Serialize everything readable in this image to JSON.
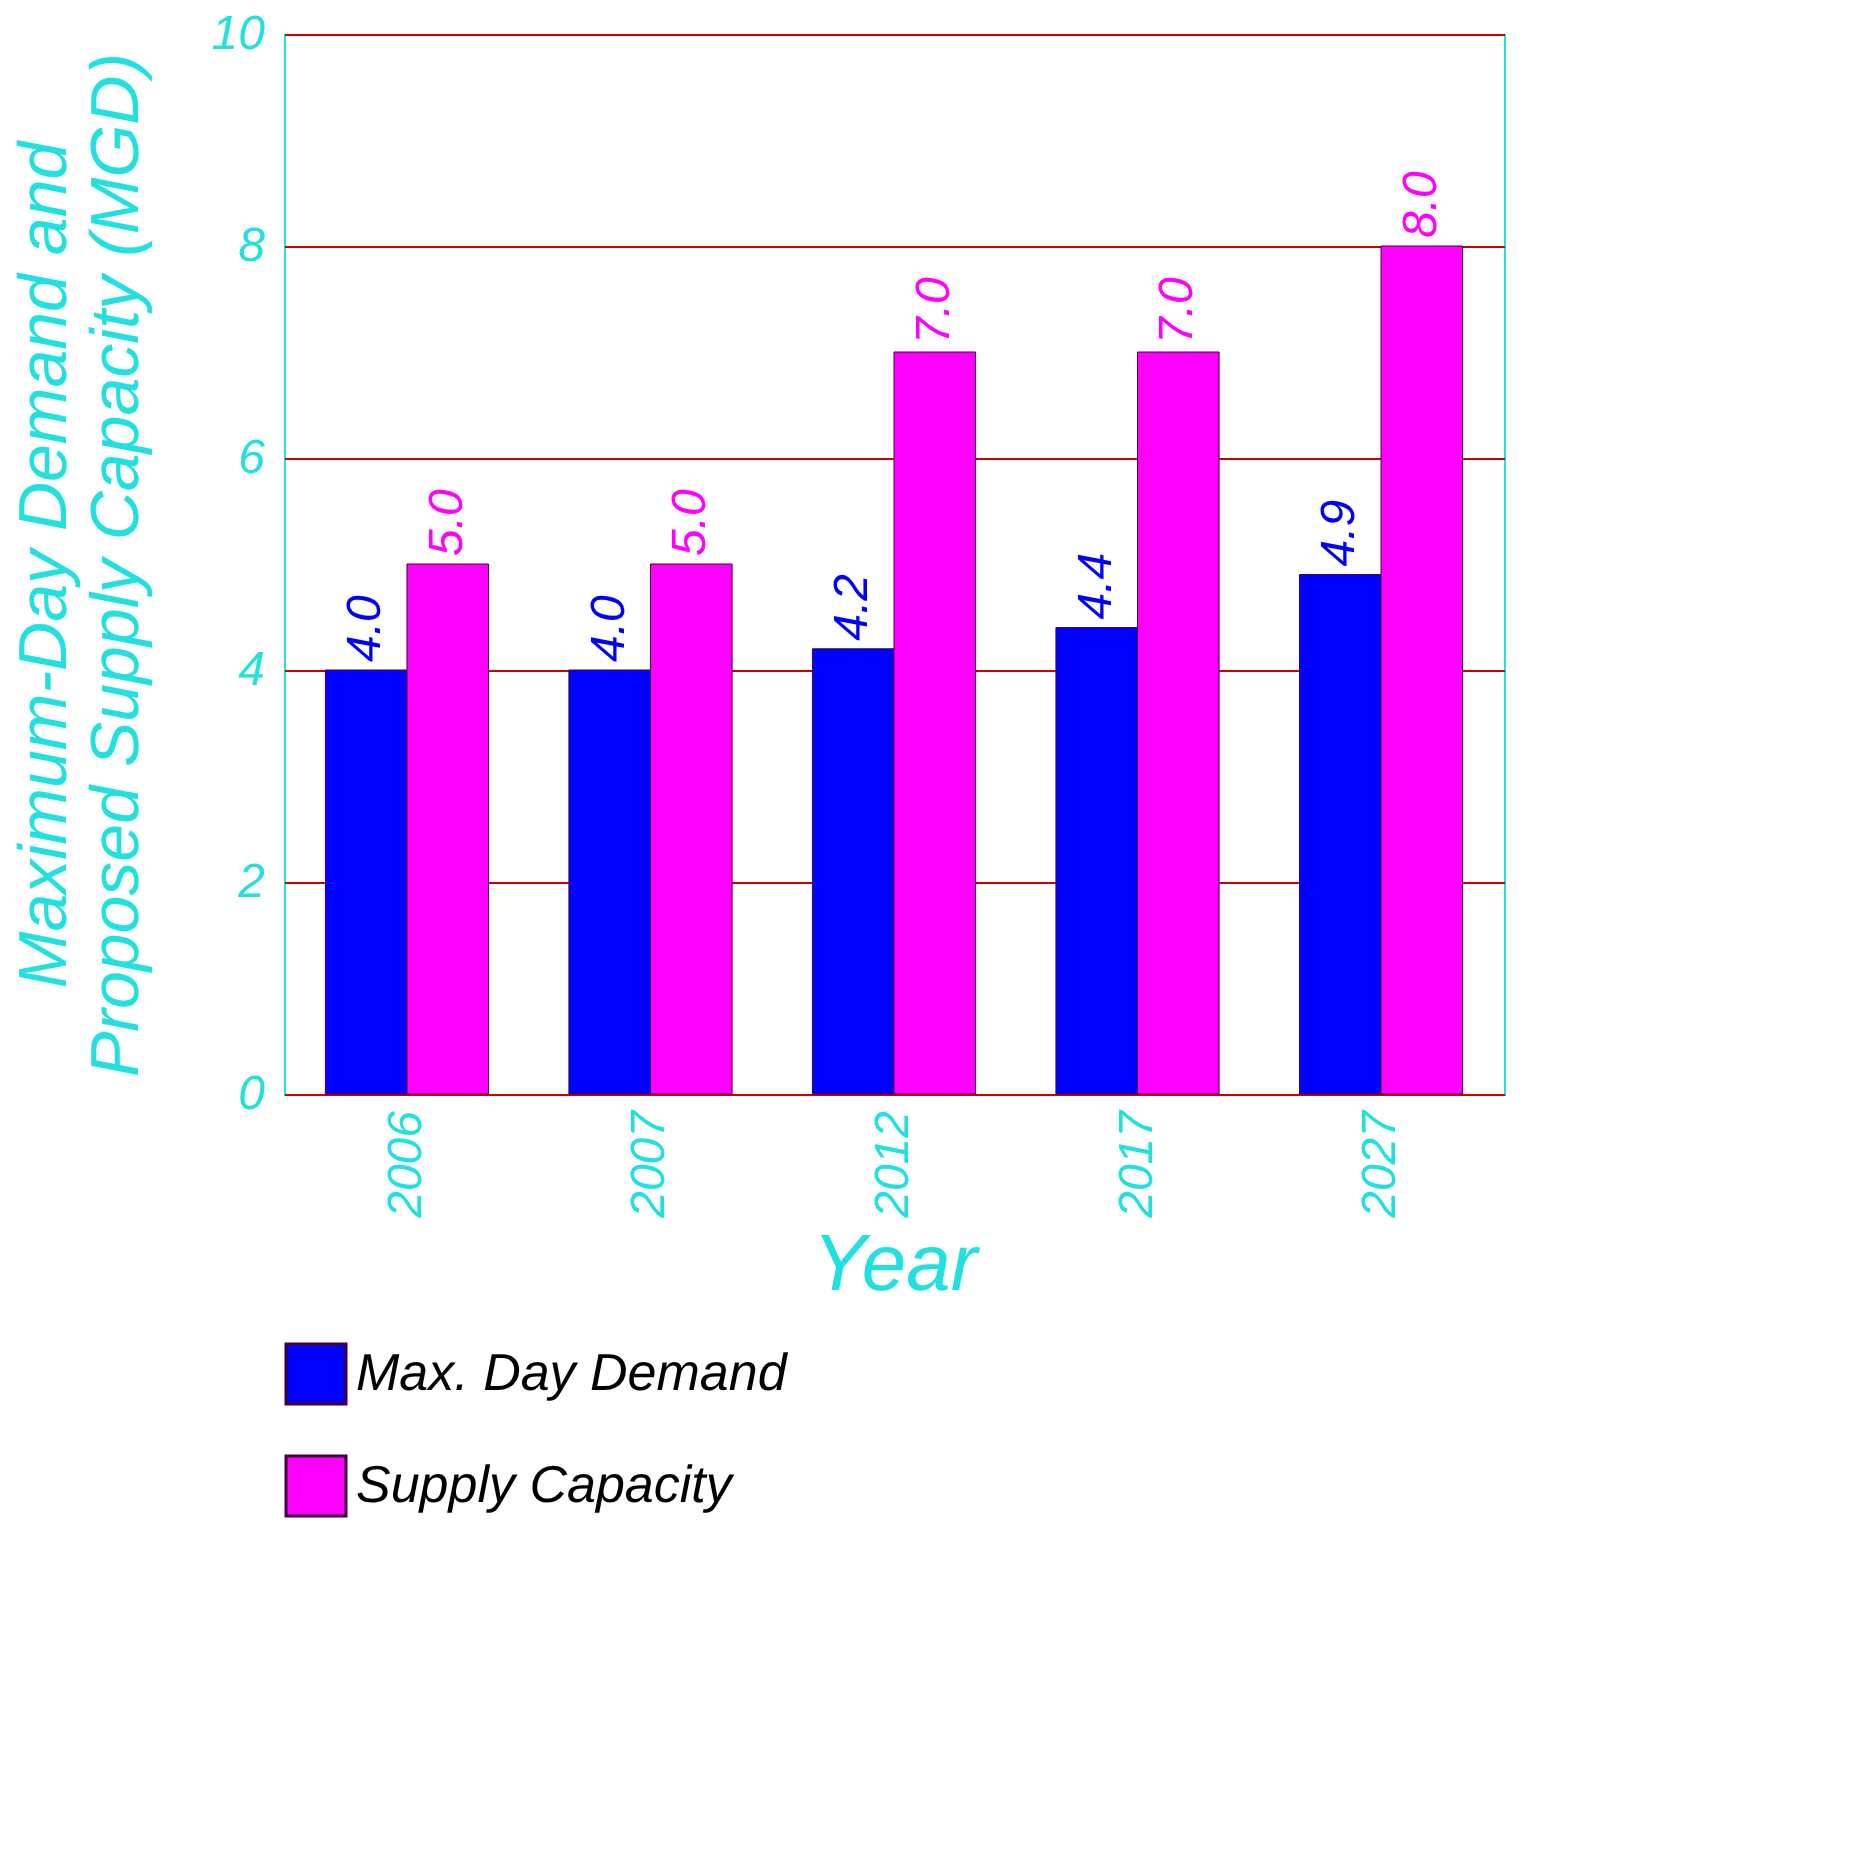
{
  "chart_data": {
    "type": "bar",
    "xlabel": "Year",
    "ylabel": "Maximum-Day Demand and\nProposed Supply Capacity (MGD)",
    "categories": [
      "2006",
      "2007",
      "2012",
      "2017",
      "2027"
    ],
    "series": [
      {
        "name": "Max. Day Demand",
        "color": "#0000ff",
        "values": [
          4,
          4,
          4.2,
          4.4,
          4.9
        ],
        "value_labels": [
          "4.0",
          "4.0",
          "4.2",
          "4.4",
          "4.9"
        ]
      },
      {
        "name": "Supply Capacity",
        "color": "#ff00ff",
        "values": [
          5,
          5,
          7,
          7,
          8
        ],
        "value_labels": [
          "5.0",
          "5.0",
          "7.0",
          "7.0",
          "8.0"
        ]
      }
    ],
    "ylim": [
      0,
      10
    ],
    "yticks": [
      0,
      2,
      4,
      6,
      8,
      10
    ],
    "grid": "y",
    "legend": "bottom"
  }
}
